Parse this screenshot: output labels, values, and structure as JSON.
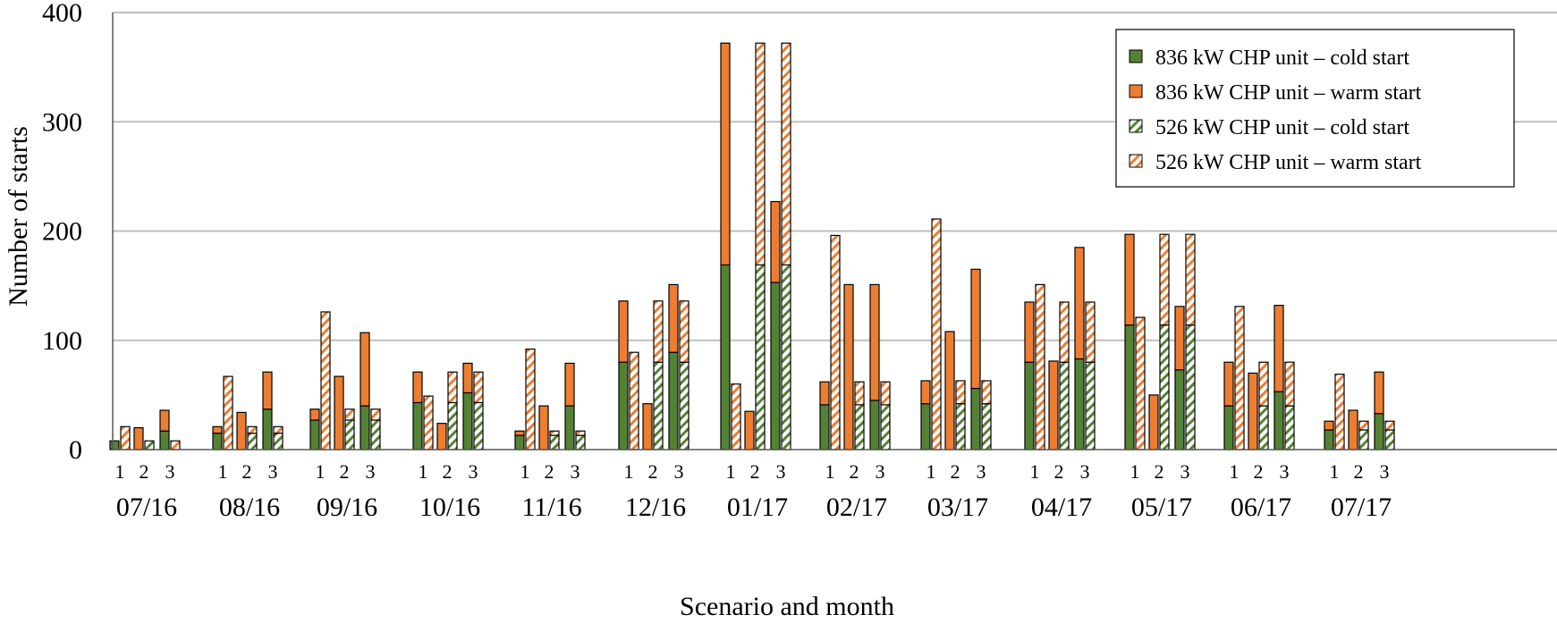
{
  "chart_data": {
    "type": "bar",
    "stacked": true,
    "xlabel": "Scenario and month",
    "ylabel": "Number of starts",
    "ylim": [
      0,
      400
    ],
    "yticks": [
      0,
      100,
      200,
      300,
      400
    ],
    "grid": true,
    "legend_position": "top-right",
    "months": [
      "07/16",
      "08/16",
      "09/16",
      "10/16",
      "11/16",
      "12/16",
      "01/17",
      "02/17",
      "03/17",
      "04/17",
      "05/17",
      "06/17",
      "07/17"
    ],
    "scenarios": [
      "1",
      "2",
      "3"
    ],
    "legend": [
      {
        "name": "836 kW CHP unit – cold start",
        "color": "#548235",
        "hatched": false
      },
      {
        "name": "836 kW CHP unit – warm start",
        "color": "#ED7D31",
        "hatched": false
      },
      {
        "name": "526 kW CHP unit – cold start",
        "color": "#548235",
        "hatched": true
      },
      {
        "name": "526 kW CHP unit – warm start",
        "color": "#ED7D31",
        "hatched": true
      }
    ],
    "bars": {
      "836_cold": [
        [
          8,
          0,
          17
        ],
        [
          15,
          0,
          37
        ],
        [
          27,
          0,
          40
        ],
        [
          43,
          0,
          52
        ],
        [
          13,
          0,
          40
        ],
        [
          80,
          0,
          89
        ],
        [
          169,
          0,
          153
        ],
        [
          41,
          0,
          45
        ],
        [
          42,
          0,
          56
        ],
        [
          80,
          0,
          83
        ],
        [
          114,
          0,
          73
        ],
        [
          40,
          0,
          53
        ],
        [
          18,
          0,
          33
        ]
      ],
      "836_warm": [
        [
          0,
          20,
          19
        ],
        [
          6,
          34,
          34
        ],
        [
          10,
          67,
          67
        ],
        [
          28,
          24,
          27
        ],
        [
          4,
          40,
          39
        ],
        [
          56,
          42,
          62
        ],
        [
          203,
          35,
          74
        ],
        [
          21,
          151,
          106
        ],
        [
          21,
          108,
          109
        ],
        [
          55,
          81,
          102
        ],
        [
          83,
          50,
          58
        ],
        [
          40,
          70,
          79
        ],
        [
          8,
          36,
          38
        ]
      ],
      "526_cold": [
        [
          0,
          8,
          0
        ],
        [
          0,
          15,
          15
        ],
        [
          0,
          27,
          27
        ],
        [
          0,
          43,
          43
        ],
        [
          0,
          13,
          13
        ],
        [
          0,
          80,
          80
        ],
        [
          0,
          169,
          169
        ],
        [
          0,
          41,
          41
        ],
        [
          0,
          42,
          42
        ],
        [
          0,
          80,
          80
        ],
        [
          0,
          114,
          114
        ],
        [
          0,
          40,
          40
        ],
        [
          0,
          18,
          18
        ]
      ],
      "526_warm": [
        [
          21,
          0,
          8
        ],
        [
          67,
          6,
          6
        ],
        [
          126,
          10,
          10
        ],
        [
          49,
          28,
          28
        ],
        [
          92,
          4,
          4
        ],
        [
          89,
          56,
          56
        ],
        [
          60,
          203,
          203
        ],
        [
          196,
          21,
          21
        ],
        [
          211,
          21,
          21
        ],
        [
          151,
          55,
          55
        ],
        [
          121,
          83,
          83
        ],
        [
          131,
          40,
          40
        ],
        [
          69,
          8,
          8
        ]
      ]
    }
  }
}
